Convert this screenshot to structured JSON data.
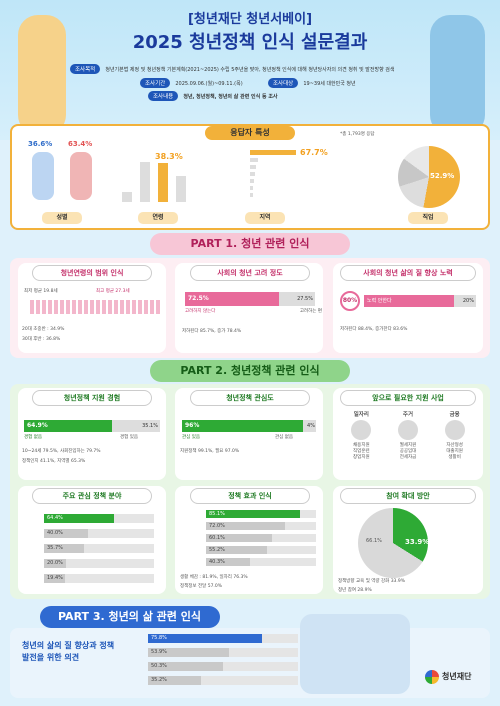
{
  "header": {
    "org": "[청년재단 청년서베이]",
    "year": "2025",
    "title": "청년정책 인식 설문결과",
    "purpose_label": "조사목적",
    "purpose": "청년기본법 제정 및 청년정책 기본계획(2021~2025) 수립 5주년을 맞아, 청년정책 인식에 대해 청년당사자의 의견 청취 및 발전방향 검색",
    "period_label": "조사기간",
    "period": "2025.09.06.(월)~09.11.(목)",
    "target_label": "조사대상",
    "target": "19~39세 대한민국 청년",
    "content_label": "조사내용",
    "content": "청년, 청년정책, 청년의 삶 관련 인식 등 조사"
  },
  "respondents": {
    "title": "응답자 특성",
    "total": "*총 1,793명 응답",
    "gender": {
      "female": "36.6%",
      "male": "63.4%",
      "label": "성별"
    },
    "age": {
      "label": "연령",
      "values": [
        "9.4%",
        "39.3%",
        "38.3%",
        "25.7%"
      ]
    },
    "region": {
      "label": "지역",
      "top": "67.7%"
    },
    "job": {
      "label": "직업",
      "top": "52.9%"
    }
  },
  "part1": {
    "title": "PART 1. 청년 관련 인식",
    "p1": {
      "title": "청년연령의 범위 인식",
      "min": "최저 평균 19.8세",
      "max": "최고 평균 27.3세",
      "n1": "20대 초중반 : 34.9%",
      "n2": "30대 후반 : 36.8%"
    },
    "p2": {
      "title": "사회의 청년 고려 정도",
      "v1": "72.5%",
      "l1": "고려하지 않는다",
      "v2": "27.5%",
      "l2": "고려하는 편",
      "n": "저하된다 85.7%, 증가 78.4%"
    },
    "p3": {
      "title": "사회의 청년 삶의 질 향상 노력",
      "v1": "80%",
      "l1": "노력 안한다",
      "v2": "20%",
      "n": "저하된다 88.4%, 증가한다 83.6%"
    }
  },
  "part2": {
    "title": "PART 2. 청년정책 관련 인식",
    "p1": {
      "title": "청년정책 지원 경험",
      "v1": "64.9%",
      "l1": "경험 없음",
      "v2": "35.1%",
      "l2": "경험 있음",
      "n1": "10~24세 79.5%, 사회진입하는 79.7%",
      "n2": "정책인지 41.1%, 지역별 65.3%"
    },
    "p2": {
      "title": "청년정책 관심도",
      "v1": "96%",
      "l1": "관심 있음",
      "v2": "4%",
      "l2": "관심 없음",
      "n": "지원정책 99.1%, 필요 97.0%"
    },
    "p3": {
      "title": "앞으로 필요한 지원 사업",
      "cats": [
        "일자리",
        "주거",
        "금융"
      ],
      "items": [
        [
          "채용지원",
          "직업훈련",
          "창업지원"
        ],
        [
          "월세지원",
          "공공임대",
          "전세자금"
        ],
        [
          "자산형성",
          "대출지원",
          "생활비"
        ]
      ]
    },
    "p4": {
      "title": "주요 관심 정책 분야",
      "bars": [
        {
          "v": "64.4%",
          "f": 0.64
        },
        {
          "v": "40.0%",
          "f": 0.4
        },
        {
          "v": "35.7%",
          "f": 0.36
        },
        {
          "v": "20.0%",
          "f": 0.2
        },
        {
          "v": "19.4%",
          "f": 0.19
        }
      ]
    },
    "p5": {
      "title": "정책 효과 인식",
      "bars": [
        {
          "v": "85.1%",
          "f": 0.85
        },
        {
          "v": "72.0%",
          "f": 0.72
        },
        {
          "v": "60.1%",
          "f": 0.6
        },
        {
          "v": "55.2%",
          "f": 0.55
        },
        {
          "v": "40.3%",
          "f": 0.4
        }
      ],
      "n1": "생활 체감 : 81.9%, 일자리 76.3%",
      "n2": "정책정보 전달 57.0%"
    },
    "p6": {
      "title": "참여 확대 방안",
      "v1": "33.9%",
      "v2": "66.1%",
      "n1": "정책방향 교육 및 역량 강화 33.9%",
      "n2": "청년 참여 28.9%"
    }
  },
  "part3": {
    "title": "PART 3. 청년의 삶 관련 인식",
    "subtitle": "청년의 삶의 질 향상과 정책 발전을 위한 의견",
    "bars": [
      {
        "v": "75.8%",
        "f": 0.76
      },
      {
        "v": "53.9%",
        "f": 0.54
      },
      {
        "v": "50.3%",
        "f": 0.5
      },
      {
        "v": "35.2%",
        "f": 0.35
      }
    ]
  },
  "logo": {
    "name": "청년재단"
  }
}
